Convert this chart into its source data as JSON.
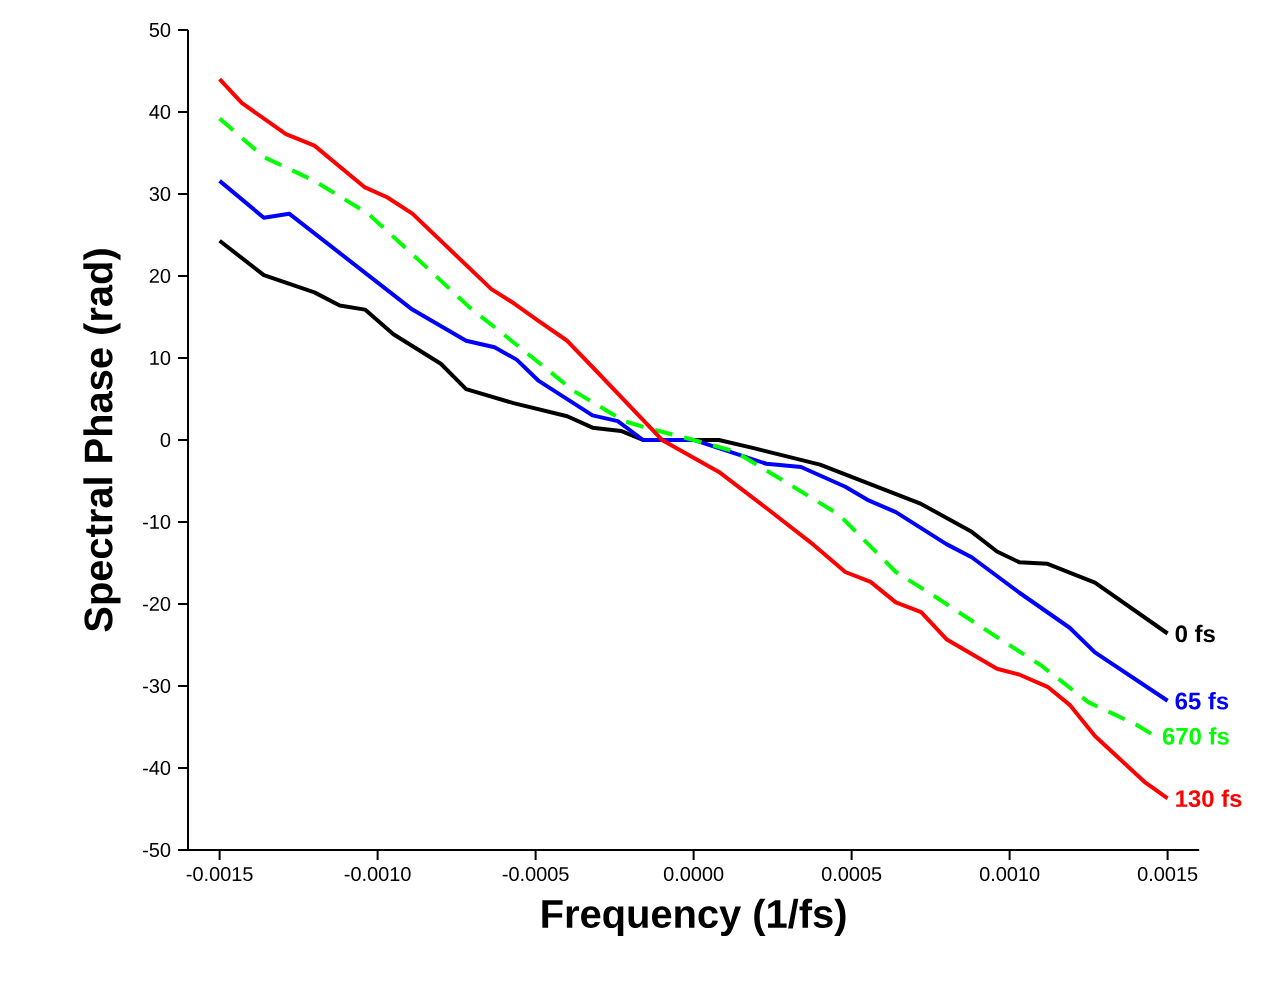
{
  "chart_data": {
    "type": "line",
    "xlabel": "Frequency (1/fs)",
    "ylabel": "Spectral Phase (rad)",
    "xlim": [
      -0.0016,
      0.0016
    ],
    "ylim": [
      -50,
      50
    ],
    "xticks": [
      {
        "value": -0.0015,
        "label": "-0.0015"
      },
      {
        "value": -0.001,
        "label": "-0.0010"
      },
      {
        "value": -0.0005,
        "label": "-0.0005"
      },
      {
        "value": 0,
        "label": "0.0000"
      },
      {
        "value": 0.0005,
        "label": "0.0005"
      },
      {
        "value": 0.001,
        "label": "0.0010"
      },
      {
        "value": 0.0015,
        "label": "0.0015"
      }
    ],
    "yticks": [
      -50,
      -40,
      -30,
      -20,
      -10,
      0,
      10,
      20,
      30,
      40,
      50
    ],
    "grid": false,
    "legend": false,
    "series": [
      {
        "name": "0 fs",
        "color": "#000000",
        "line_style": "solid",
        "x": [
          -0.0015,
          -0.00136,
          -0.0012,
          -0.00112,
          -0.00104,
          -0.00095,
          -0.0008,
          -0.00072,
          -0.00057,
          -0.0004,
          -0.00032,
          -0.00023,
          -0.00016,
          8e-05,
          0.00019,
          0.0004,
          0.00056,
          0.00072,
          0.00088,
          0.00096,
          0.00103,
          0.00112,
          0.00127,
          0.0015
        ],
        "values": [
          24.3,
          20.1,
          18,
          16.4,
          15.9,
          12.9,
          9.3,
          6.2,
          4.5,
          2.9,
          1.5,
          1.1,
          0,
          0,
          -1,
          -3,
          -5.4,
          -7.8,
          -11.2,
          -13.6,
          -14.9,
          -15.1,
          -17.4,
          -23.6
        ]
      },
      {
        "name": "65 fs",
        "color": "#0000ff",
        "line_style": "solid",
        "x": [
          -0.0015,
          -0.00136,
          -0.00128,
          -0.00089,
          -0.00072,
          -0.00063,
          -0.00056,
          -0.00049,
          -0.00032,
          -0.00024,
          -0.00016,
          0,
          0.00023,
          0.00034,
          0.00048,
          0.00055,
          0.00064,
          0.0008,
          0.00088,
          0.00103,
          0.00119,
          0.00127,
          0.0015
        ],
        "values": [
          31.6,
          27.1,
          27.6,
          15.9,
          12.1,
          11.3,
          9.8,
          7.2,
          3,
          2.3,
          0,
          0,
          -2.9,
          -3.3,
          -5.7,
          -7.3,
          -8.8,
          -12.7,
          -14.3,
          -18.6,
          -22.9,
          -25.9,
          -31.8
        ]
      },
      {
        "name": "670 fs",
        "color": "#00ff00",
        "line_style": "dashed",
        "x": [
          -0.0015,
          -0.00136,
          -0.0012,
          -0.00103,
          -0.00088,
          -0.00071,
          -0.00055,
          -0.00038,
          -0.00022,
          -0.00015,
          0,
          0.00013,
          0.00029,
          0.00046,
          0.00064,
          0.00076,
          0.00095,
          0.0011,
          0.00125,
          0.0014,
          0.00146
        ],
        "values": [
          39.2,
          34.5,
          31.6,
          27.6,
          22.3,
          16.2,
          11.3,
          6,
          2.3,
          1.5,
          0,
          -1.4,
          -5.1,
          -9.1,
          -16.1,
          -19,
          -23.8,
          -27.5,
          -32,
          -34.7,
          -36.1
        ]
      },
      {
        "name": "130 fs",
        "color": "#ff0000",
        "line_style": "solid",
        "x": [
          -0.0015,
          -0.00143,
          -0.00129,
          -0.0012,
          -0.00104,
          -0.00097,
          -0.00089,
          -0.00064,
          -0.00057,
          -0.00049,
          -0.0004,
          -0.00032,
          -0.0001,
          8e-05,
          0.00023,
          0.00038,
          0.00048,
          0.00056,
          0.00064,
          0.00072,
          0.0008,
          0.00096,
          0.00103,
          0.00112,
          0.00119,
          0.00127,
          0.00143,
          0.0015
        ],
        "values": [
          44,
          41.1,
          37.3,
          35.9,
          30.8,
          29.6,
          27.6,
          18.4,
          16.7,
          14.5,
          12.1,
          8.9,
          0,
          -3.9,
          -8.3,
          -12.8,
          -16.1,
          -17.3,
          -19.8,
          -21,
          -24.3,
          -27.9,
          -28.6,
          -30.1,
          -32.3,
          -36.1,
          -41.8,
          -43.7
        ]
      }
    ]
  }
}
